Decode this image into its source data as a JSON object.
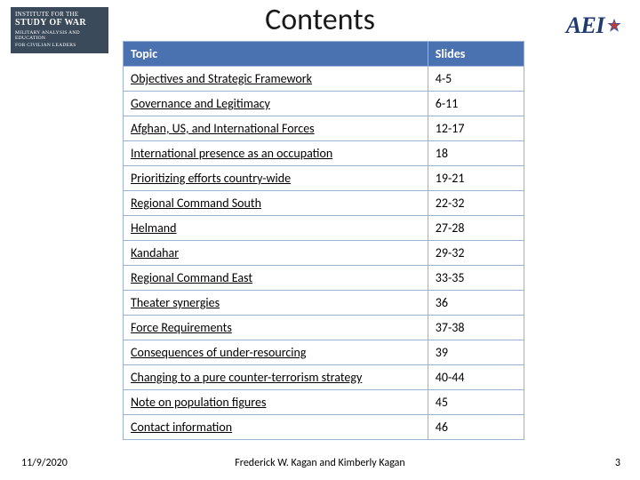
{
  "title": "Contents",
  "logos": {
    "left": {
      "line1": "INSTITUTE FOR THE",
      "line2": "STUDY OF WAR",
      "line3": "MILITARY ANALYSIS AND EDUCATION",
      "line4": "FOR CIVILIAN LEADERS",
      "bg_color": "#3b4a5a",
      "text_color": "#ffffff"
    },
    "right": {
      "text": "AEI",
      "text_color": "#1e3a6e",
      "star_color_outer": "#2f5aa8",
      "star_color_inner": "#c43a3a"
    }
  },
  "table": {
    "header_bg": "#4a71b0",
    "header_text": "#ffffff",
    "border_color": "#9cb2d4",
    "row_bg": "#ffffff",
    "columns": [
      "Topic",
      "Slides"
    ],
    "col_widths_pct": [
      76,
      24
    ],
    "rows": [
      {
        "topic": "Objectives and Strategic Framework",
        "slides": "4-5"
      },
      {
        "topic": "Governance and Legitimacy",
        "slides": "6-11"
      },
      {
        "topic": "Afghan, US, and International Forces",
        "slides": "12-17"
      },
      {
        "topic": "International presence as an occupation",
        "slides": "18"
      },
      {
        "topic": "Prioritizing efforts country-wide",
        "slides": "19-21"
      },
      {
        "topic": "Regional Command South",
        "slides": "22-32"
      },
      {
        "topic": "Helmand",
        "slides": "27-28"
      },
      {
        "topic": "Kandahar",
        "slides": "29-32"
      },
      {
        "topic": "Regional Command East",
        "slides": "33-35"
      },
      {
        "topic": "Theater synergies",
        "slides": "36"
      },
      {
        "topic": "Force Requirements",
        "slides": "37-38"
      },
      {
        "topic": "Consequences of under-resourcing",
        "slides": "39"
      },
      {
        "topic": "Changing to a pure counter-terrorism strategy",
        "slides": "40-44"
      },
      {
        "topic": "Note on population figures",
        "slides": "45"
      },
      {
        "topic": "Contact information",
        "slides": "46"
      }
    ]
  },
  "footer": {
    "date": "11/9/2020",
    "authors": "Frederick W. Kagan and Kimberly Kagan",
    "page": "3"
  }
}
